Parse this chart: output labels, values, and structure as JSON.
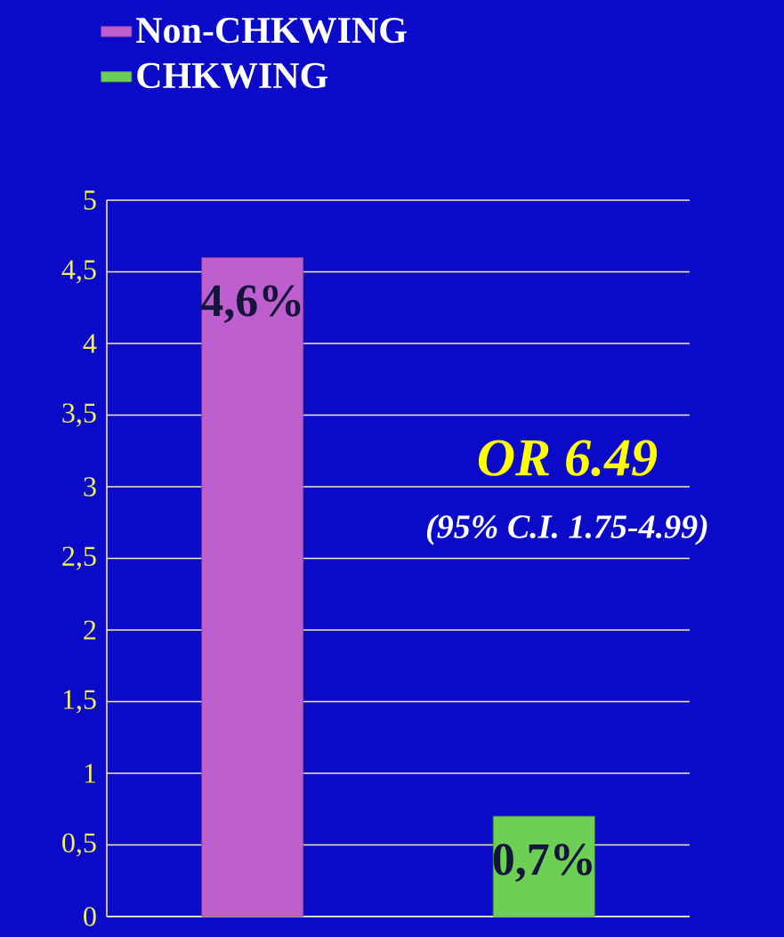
{
  "chart_data": {
    "type": "bar",
    "categories": [
      null,
      null
    ],
    "series": [
      {
        "name": "Non-CHKWING",
        "color": "#bf5fcf",
        "values": [
          4.6,
          null
        ],
        "value_labels": [
          "4,6%",
          null
        ]
      },
      {
        "name": "CHKWING",
        "color": "#6cd054",
        "values": [
          null,
          0.7
        ],
        "value_labels": [
          null,
          "0,7%"
        ]
      }
    ],
    "ylim": [
      0,
      5
    ],
    "yticks": [
      0,
      {
        "value": 0.5,
        "label": "0,5"
      },
      1,
      {
        "value": 1.5,
        "label": "1,5"
      },
      2,
      {
        "value": 2.5,
        "label": "2,5"
      },
      3,
      {
        "value": 3.5,
        "label": "3,5"
      },
      4,
      {
        "value": 4.5,
        "label": "4,5"
      },
      5
    ],
    "grid": "y",
    "legend": "top left",
    "annotations": [
      "OR 6.49",
      "(95% C.I. 1.75-4.99)"
    ]
  }
}
